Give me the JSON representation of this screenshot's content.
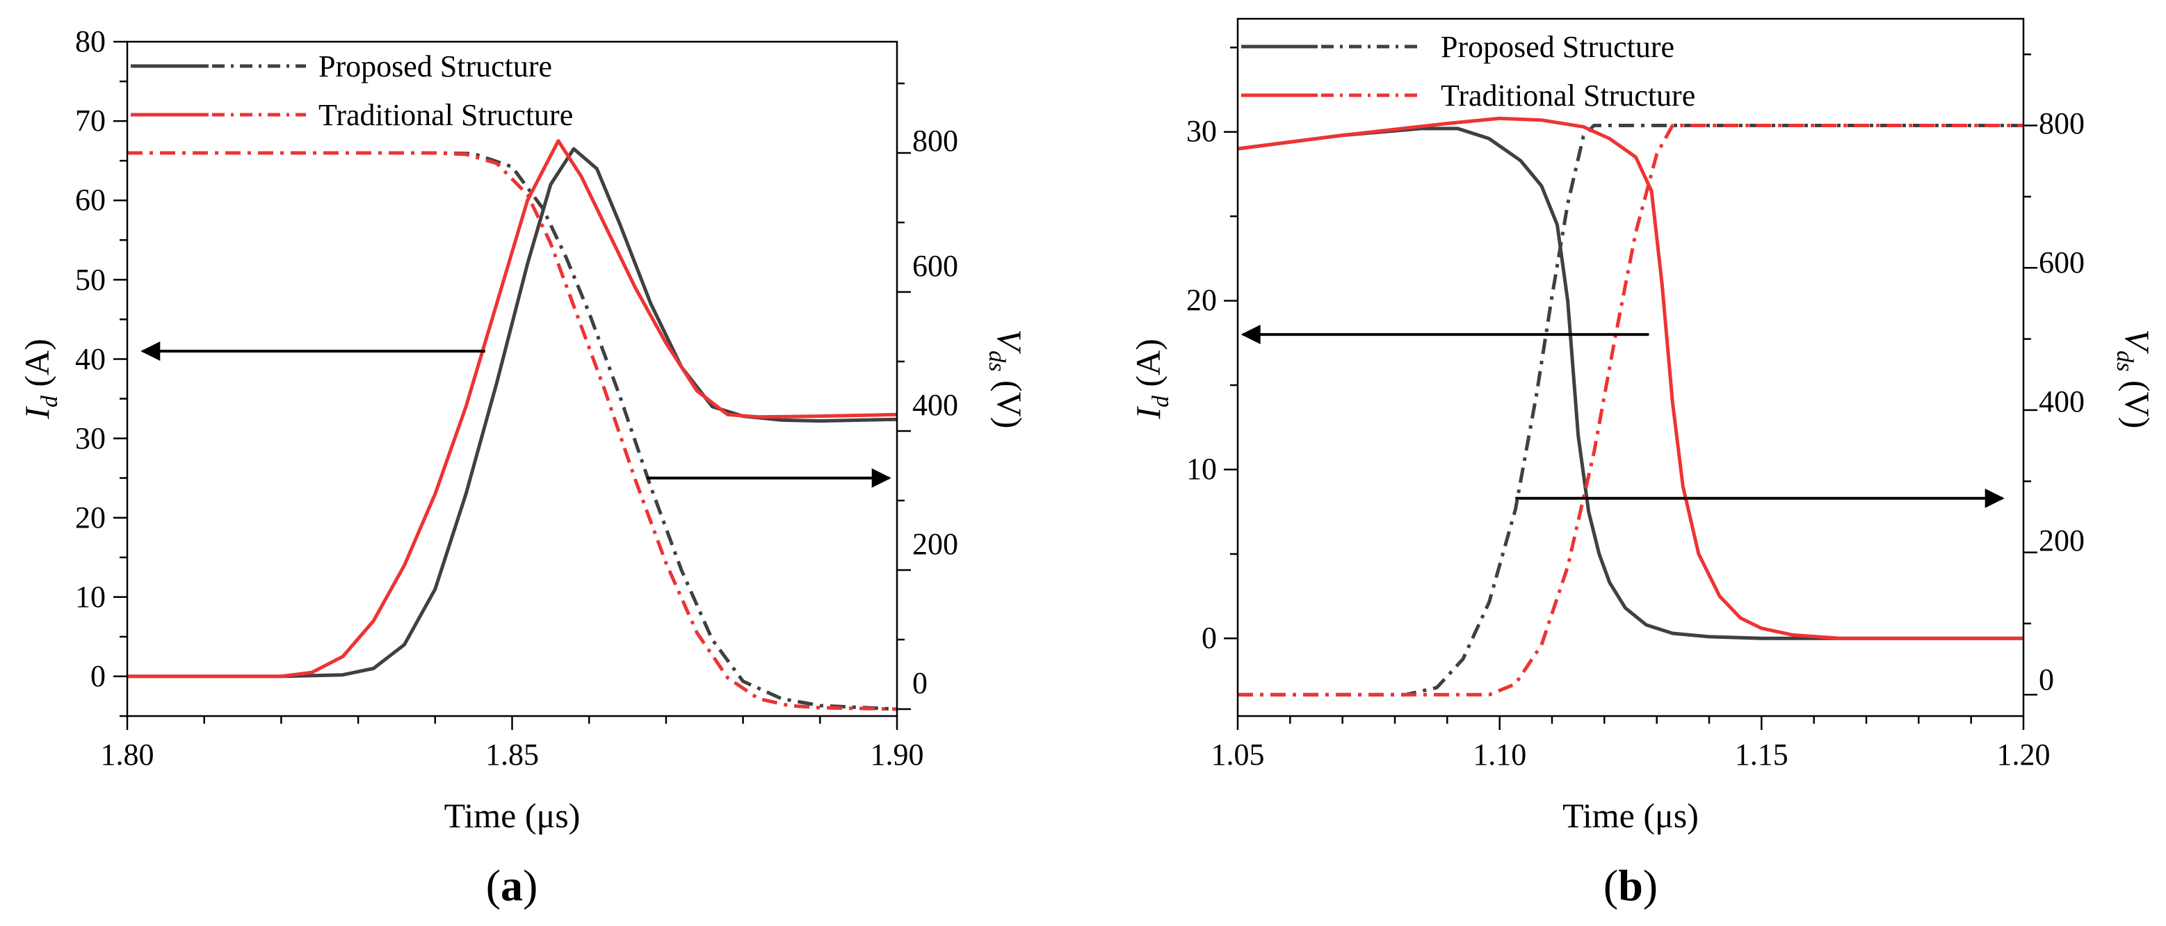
{
  "figure": {
    "colors": {
      "proposed": "#404040",
      "traditional": "#ee3333",
      "axis": "#000000"
    }
  },
  "chart_data": [
    {
      "panel": "(a)",
      "panel_open": "(",
      "panel_letter": "a",
      "panel_close": ")",
      "type": "line",
      "xlabel": "Time (μs)",
      "ylabel_left": "I_d (A)",
      "ylabel_left_main": "I",
      "ylabel_left_sub": "d",
      "ylabel_left_unit": " (A)",
      "ylabel_right": "V_ds (V)",
      "ylabel_right_main": "V",
      "ylabel_right_sub": "ds",
      "ylabel_right_unit": " (V)",
      "xlim": [
        1.8,
        1.9
      ],
      "ylim_left": [
        -5,
        80
      ],
      "ylim_right": [
        -10,
        960
      ],
      "xticks": [
        "1.80",
        "1.85",
        "1.90"
      ],
      "xtick_values": [
        1.8,
        1.85,
        1.9
      ],
      "yticks_left": [
        "0",
        "10",
        "20",
        "30",
        "40",
        "50",
        "60",
        "70",
        "80"
      ],
      "ytick_left_values": [
        0,
        10,
        20,
        30,
        40,
        50,
        60,
        70,
        80
      ],
      "yticks_right": [
        "0",
        "200",
        "400",
        "600",
        "800"
      ],
      "ytick_right_values": [
        0,
        200,
        400,
        600,
        800
      ],
      "legend": [
        "Proposed Structure",
        "Traditional Structure"
      ],
      "annotations": [
        {
          "type": "arrow",
          "points_to": "left axis (I_d)",
          "from": [
            1.8465,
            41
          ],
          "to": [
            1.802,
            41
          ],
          "axis": "left"
        },
        {
          "type": "arrow",
          "points_to": "right axis (V_ds)",
          "from": [
            1.8675,
            25
          ],
          "to": [
            1.899,
            25
          ],
          "axis": "left"
        }
      ],
      "series": [
        {
          "name": "Proposed Structure",
          "quantity": "I_d",
          "axis": "left",
          "style": "solid",
          "color": "#404040",
          "x": [
            1.8,
            1.82,
            1.828,
            1.832,
            1.836,
            1.84,
            1.844,
            1.848,
            1.852,
            1.855,
            1.858,
            1.861,
            1.864,
            1.868,
            1.872,
            1.876,
            1.88,
            1.885,
            1.89,
            1.9
          ],
          "y": [
            0,
            0,
            0.2,
            1,
            4,
            11,
            23,
            37,
            52,
            62,
            66.5,
            64,
            57,
            47,
            39,
            34,
            32.8,
            32.3,
            32.2,
            32.4
          ]
        },
        {
          "name": "Proposed Structure",
          "quantity": "V_ds",
          "axis": "right",
          "style": "dashdot",
          "color": "#404040",
          "x": [
            1.8,
            1.84,
            1.845,
            1.85,
            1.854,
            1.857,
            1.86,
            1.864,
            1.868,
            1.872,
            1.876,
            1.88,
            1.885,
            1.89,
            1.9
          ],
          "y": [
            800,
            800,
            799,
            780,
            720,
            650,
            570,
            450,
            320,
            200,
            100,
            40,
            15,
            5,
            0
          ]
        },
        {
          "name": "Traditional Structure",
          "quantity": "I_d",
          "axis": "left",
          "style": "solid",
          "color": "#ee3333",
          "x": [
            1.8,
            1.82,
            1.824,
            1.828,
            1.832,
            1.836,
            1.84,
            1.844,
            1.848,
            1.852,
            1.856,
            1.859,
            1.862,
            1.866,
            1.87,
            1.874,
            1.878,
            1.882,
            1.89,
            1.9
          ],
          "y": [
            0,
            0,
            0.5,
            2.5,
            7,
            14,
            23,
            34,
            47,
            60,
            67.5,
            63,
            57,
            49,
            42,
            36,
            33,
            32.7,
            32.8,
            33
          ]
        },
        {
          "name": "Traditional Structure",
          "quantity": "V_ds",
          "axis": "right",
          "style": "dashdot",
          "color": "#ee3333",
          "x": [
            1.8,
            1.84,
            1.844,
            1.848,
            1.852,
            1.855,
            1.858,
            1.862,
            1.866,
            1.87,
            1.874,
            1.878,
            1.882,
            1.886,
            1.89,
            1.9
          ],
          "y": [
            800,
            800,
            798,
            785,
            740,
            670,
            580,
            460,
            330,
            210,
            110,
            45,
            15,
            5,
            2,
            0
          ]
        }
      ]
    },
    {
      "panel": "(b)",
      "panel_open": "(",
      "panel_letter": "b",
      "panel_close": ")",
      "type": "line",
      "xlabel": "Time (μs)",
      "ylabel_left": "I_d (A)",
      "ylabel_left_main": "I",
      "ylabel_left_sub": "d",
      "ylabel_left_unit": " (A)",
      "ylabel_right": "V_ds (V)",
      "ylabel_right_main": "V",
      "ylabel_right_sub": "ds",
      "ylabel_right_unit": " (V)",
      "xlim": [
        1.05,
        1.2
      ],
      "ylim_left": [
        -4.6,
        36.7
      ],
      "ylim_right": [
        -30,
        950
      ],
      "xticks": [
        "1.05",
        "1.10",
        "1.15",
        "1.20"
      ],
      "xtick_values": [
        1.05,
        1.1,
        1.15,
        1.2
      ],
      "yticks_left": [
        "0",
        "10",
        "20",
        "30"
      ],
      "ytick_left_values": [
        0,
        10,
        20,
        30
      ],
      "yticks_right": [
        "0",
        "200",
        "400",
        "600",
        "800"
      ],
      "ytick_right_values": [
        0,
        200,
        400,
        600,
        800
      ],
      "legend": [
        "Proposed Structure",
        "Traditional Structure"
      ],
      "annotations": [
        {
          "type": "arrow",
          "points_to": "left axis (I_d)",
          "from": [
            1.1285,
            18
          ],
          "to": [
            1.051,
            18
          ],
          "axis": "left"
        },
        {
          "type": "arrow",
          "points_to": "right axis (V_ds)",
          "from": [
            1.103,
            8.3
          ],
          "to": [
            1.196,
            8.3
          ],
          "axis": "left"
        }
      ],
      "series": [
        {
          "name": "Proposed Structure",
          "quantity": "I_d",
          "axis": "left",
          "style": "solid",
          "color": "#404040",
          "x": [
            1.05,
            1.07,
            1.085,
            1.092,
            1.098,
            1.104,
            1.108,
            1.111,
            1.113,
            1.115,
            1.117,
            1.119,
            1.121,
            1.124,
            1.128,
            1.133,
            1.14,
            1.15,
            1.2
          ],
          "y": [
            29,
            29.8,
            30.2,
            30.2,
            29.6,
            28.3,
            26.8,
            24.5,
            20,
            12,
            7.5,
            5,
            3.3,
            1.8,
            0.8,
            0.3,
            0.1,
            0,
            0
          ]
        },
        {
          "name": "Proposed Structure",
          "quantity": "V_ds",
          "axis": "right",
          "style": "dashdot",
          "color": "#404040",
          "x": [
            1.05,
            1.082,
            1.088,
            1.093,
            1.098,
            1.103,
            1.107,
            1.11,
            1.113,
            1.116,
            1.118,
            1.2
          ],
          "y": [
            0,
            0,
            10,
            50,
            130,
            260,
            420,
            560,
            690,
            785,
            800,
            800
          ]
        },
        {
          "name": "Traditional Structure",
          "quantity": "I_d",
          "axis": "left",
          "style": "solid",
          "color": "#ee3333",
          "x": [
            1.05,
            1.07,
            1.09,
            1.1,
            1.108,
            1.116,
            1.121,
            1.126,
            1.129,
            1.131,
            1.133,
            1.135,
            1.138,
            1.142,
            1.146,
            1.15,
            1.156,
            1.165,
            1.2
          ],
          "y": [
            29,
            29.8,
            30.5,
            30.8,
            30.7,
            30.3,
            29.6,
            28.5,
            26.5,
            21,
            14,
            9,
            5,
            2.5,
            1.2,
            0.6,
            0.2,
            0,
            0
          ]
        },
        {
          "name": "Traditional Structure",
          "quantity": "V_ds",
          "axis": "right",
          "style": "dashdot",
          "color": "#ee3333",
          "x": [
            1.05,
            1.098,
            1.103,
            1.108,
            1.113,
            1.118,
            1.122,
            1.126,
            1.13,
            1.133,
            1.2
          ],
          "y": [
            0,
            0,
            15,
            70,
            180,
            340,
            500,
            650,
            760,
            800,
            800
          ]
        }
      ]
    }
  ]
}
